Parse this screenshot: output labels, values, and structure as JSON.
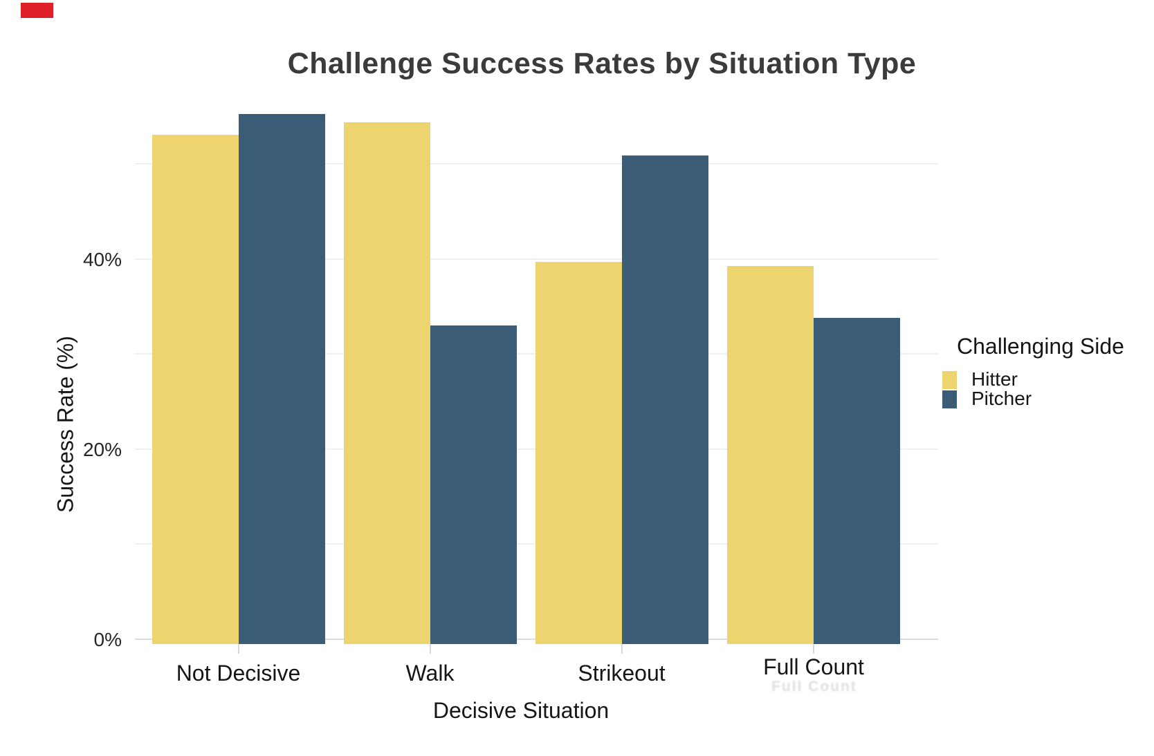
{
  "chart_data": {
    "type": "bar",
    "title": "Challenge Success Rates by Situation Type",
    "xlabel": "Decisive Situation",
    "ylabel": "Success Rate (%)",
    "categories": [
      "Not Decisive",
      "Walk",
      "Strikeout",
      "Full Count"
    ],
    "series": [
      {
        "name": "Hitter",
        "color": "#edd46f",
        "values": [
          53.0,
          54.3,
          39.6,
          39.2
        ]
      },
      {
        "name": "Pitcher",
        "color": "#3b5c77",
        "values": [
          55.2,
          32.9,
          50.8,
          33.7
        ]
      }
    ],
    "y_ticks": [
      {
        "value": 0,
        "label": "0%"
      },
      {
        "value": 20,
        "label": "20%"
      },
      {
        "value": 40,
        "label": "40%"
      }
    ],
    "ylim": [
      0,
      57
    ],
    "gridlines_percent": [
      10,
      20,
      30,
      40,
      50
    ],
    "grid": true,
    "legend": {
      "title": "Challenging Side",
      "position": "right"
    }
  },
  "legend": {
    "title": "Challenging Side",
    "items": [
      {
        "label": "Hitter",
        "color": "#edd46f"
      },
      {
        "label": "Pitcher",
        "color": "#3b5c77"
      }
    ]
  },
  "annotations": {
    "red_box_color": "#de2129",
    "ghost_label": "Full Count"
  },
  "colors": {
    "background": "#ffffff",
    "gridline": "#f0f0f0",
    "axis_line": "#dcdcdc",
    "title_text": "#3b3b3b",
    "axis_text": "#161616"
  }
}
